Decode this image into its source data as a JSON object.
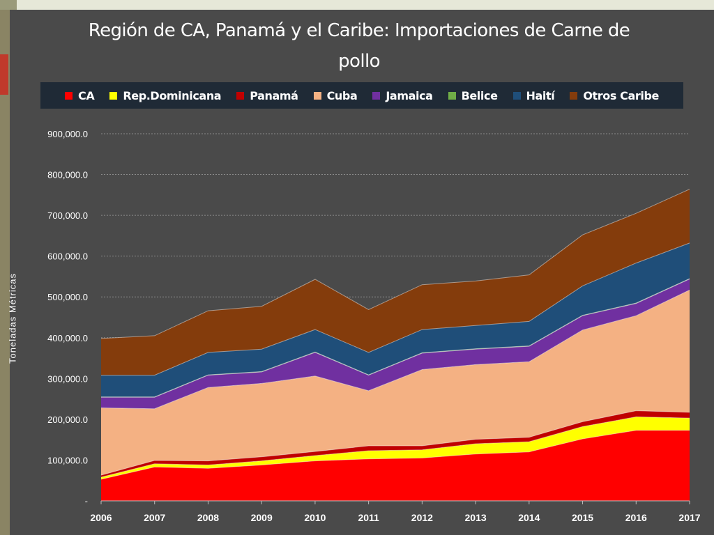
{
  "chart_data": {
    "type": "area",
    "stacked": true,
    "title": "Región de CA, Panamá y el Caribe: Importaciones de Carne de pollo",
    "xlabel": "",
    "ylabel": "Toneladas Métricas",
    "ylim": [
      0,
      900000
    ],
    "yticks": [
      0,
      100000,
      200000,
      300000,
      400000,
      500000,
      600000,
      700000,
      800000,
      900000
    ],
    "ytick_labels": [
      "-",
      "100,000.0",
      "200,000.0",
      "300,000.0",
      "400,000.0",
      "500,000.0",
      "600,000.0",
      "700,000.0",
      "800,000.0",
      "900,000.0"
    ],
    "grid": true,
    "legend_position": "top",
    "categories": [
      "2006",
      "2007",
      "2008",
      "2009",
      "2010",
      "2011",
      "2012",
      "2013",
      "2014",
      "2015",
      "2016",
      "2017"
    ],
    "series": [
      {
        "name": "CA",
        "color": "#ff0000",
        "values": [
          53000,
          83000,
          80000,
          88000,
          98000,
          103000,
          105000,
          115000,
          120000,
          152000,
          173000,
          173000
        ]
      },
      {
        "name": "Rep.Dominicana",
        "color": "#ffff00",
        "values": [
          5000,
          8000,
          8000,
          10000,
          13000,
          20000,
          20000,
          25000,
          25000,
          30000,
          33000,
          30000
        ]
      },
      {
        "name": "Panamá",
        "color": "#c00000",
        "values": [
          5000,
          8000,
          10000,
          10000,
          10000,
          12000,
          10000,
          11000,
          11000,
          12000,
          15000,
          14000
        ]
      },
      {
        "name": "Cuba",
        "color": "#f4b183",
        "values": [
          165000,
          127000,
          180000,
          180000,
          185000,
          135000,
          187000,
          183000,
          185000,
          225000,
          233000,
          300000
        ]
      },
      {
        "name": "Jamaica",
        "color": "#7030a0",
        "values": [
          26000,
          28000,
          30000,
          28000,
          58000,
          38000,
          40000,
          38000,
          38000,
          35000,
          30000,
          27000
        ]
      },
      {
        "name": "Belice",
        "color": "#70ad47",
        "values": [
          1000,
          1000,
          1000,
          1000,
          1000,
          1000,
          1000,
          1000,
          1000,
          1000,
          1000,
          1000
        ]
      },
      {
        "name": "Haití",
        "color": "#1f4e79",
        "values": [
          53000,
          53000,
          55000,
          55000,
          55000,
          55000,
          57000,
          57000,
          60000,
          72000,
          98000,
          87000
        ]
      },
      {
        "name": "Otros Caribe",
        "color": "#843c0c",
        "values": [
          90000,
          97000,
          102000,
          105000,
          123000,
          105000,
          110000,
          109000,
          114000,
          125000,
          122000,
          132000
        ]
      }
    ]
  },
  "colors": {
    "panel_background": "#4a4a4a",
    "legend_background": "#1f2a36",
    "gridline": "#8a8a8a",
    "text": "#ffffff",
    "slide_background": "#8c8c6e"
  }
}
